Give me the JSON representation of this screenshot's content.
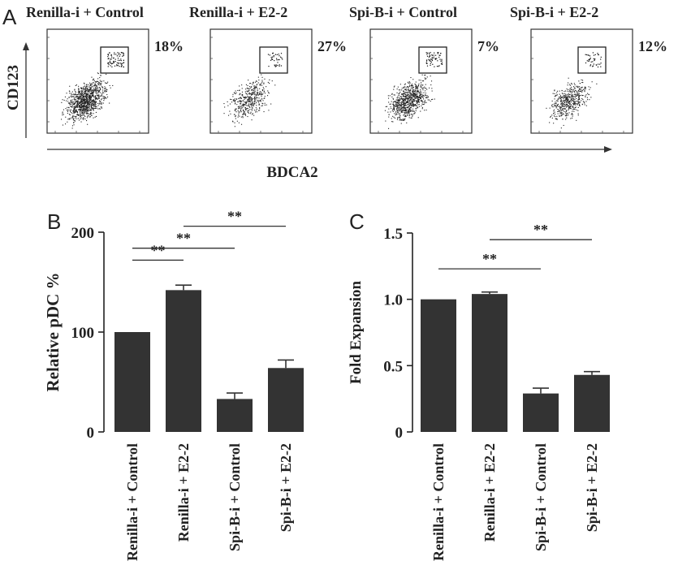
{
  "panels": {
    "A": "A",
    "B": "B",
    "C": "C"
  },
  "flow": {
    "ylabel": "CD123",
    "xlabel": "BDCA2",
    "plots": [
      {
        "title": "Renilla-i + Control",
        "percent": "18%",
        "density": 1.0
      },
      {
        "title": "Renilla-i + E2-2",
        "percent": "27%",
        "density": 0.35
      },
      {
        "title": "Spi-B-i + Control",
        "percent": "7%",
        "density": 0.75
      },
      {
        "title": "Spi-B-i + E2-2",
        "percent": "12%",
        "density": 0.4
      }
    ]
  },
  "chart_data": [
    {
      "type": "bar",
      "panel": "B",
      "title": "",
      "xlabel": "",
      "ylabel": "Relative pDC %",
      "ylim": [
        0,
        200
      ],
      "yticks": [
        0,
        100,
        200
      ],
      "categories": [
        "Renilla-i + Control",
        "Renilla-i + E2-2",
        "Spi-B-i + Control",
        "Spi-B-i + E2-2"
      ],
      "values": [
        100,
        142,
        33,
        64
      ],
      "errors": [
        0,
        5,
        6,
        8
      ],
      "color": "#333333",
      "significance": [
        {
          "from": 0,
          "to": 1,
          "label": "**",
          "y": 172
        },
        {
          "from": 0,
          "to": 2,
          "label": "**",
          "y": 184
        },
        {
          "from": 1,
          "to": 3,
          "label": "**",
          "y": 206
        }
      ]
    },
    {
      "type": "bar",
      "panel": "C",
      "title": "",
      "xlabel": "",
      "ylabel": "Fold Expansion",
      "ylim": [
        0,
        1.5
      ],
      "yticks": [
        0,
        0.5,
        1.0,
        1.5
      ],
      "ytick_labels": [
        "0",
        "0.5",
        "1.0",
        "1.5"
      ],
      "categories": [
        "Renilla-i + Control",
        "Renilla-i + E2-2",
        "Spi-B-i + Control",
        "Spi-B-i + E2-2"
      ],
      "values": [
        1.0,
        1.04,
        0.29,
        0.43
      ],
      "errors": [
        0,
        0.015,
        0.04,
        0.025
      ],
      "color": "#333333",
      "significance": [
        {
          "from": 0,
          "to": 2,
          "label": "**",
          "y": 1.23
        },
        {
          "from": 1,
          "to": 3,
          "label": "**",
          "y": 1.45
        }
      ]
    }
  ]
}
